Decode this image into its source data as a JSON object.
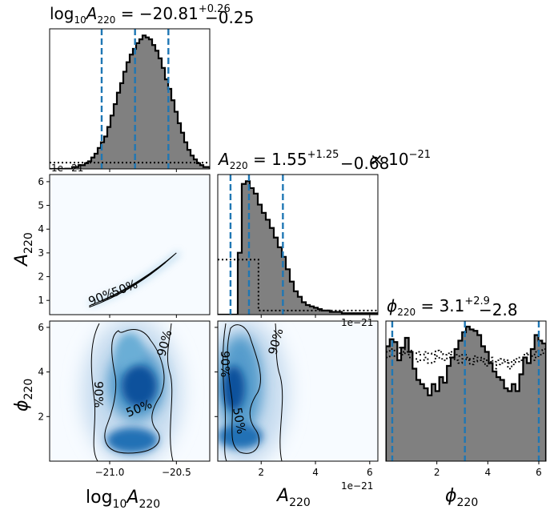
{
  "chart_data": {
    "type": "corner",
    "panels": [
      {
        "id": "hist-logA",
        "type": "histogram",
        "title": "log10A220 = −20.81 +0.26 −0.25",
        "title_parts": {
          "lhs": "log",
          "lhs_sub": "10",
          "sym": "A",
          "sym_sub": "220",
          "eq": " = −20.81",
          "sup": "+0.26",
          "sub": "−0.25"
        },
        "x_range": [
          -21.45,
          -20.25
        ],
        "bins_x": [
          -21.45,
          -20.25
        ],
        "counts": [
          0,
          0,
          0,
          0,
          0,
          0,
          0,
          1,
          1,
          2,
          2,
          3,
          4,
          6,
          8,
          11,
          14,
          17,
          22,
          28,
          34,
          40,
          45,
          51,
          56,
          60,
          63,
          66,
          68,
          70,
          69,
          68,
          65,
          62,
          58,
          53,
          47,
          42,
          36,
          30,
          24,
          19,
          14,
          10,
          7,
          5,
          3,
          2,
          1,
          1
        ],
        "vlines": [
          -21.06,
          -20.81,
          -20.56
        ],
        "prior_level": 0.045,
        "offset_text": "1e−21"
      },
      {
        "id": "hist-A",
        "type": "histogram",
        "title": "A220 = 1.55 +1.25 −0.68 × 10^−21",
        "title_parts": {
          "sym": "A",
          "sym_sub": "220",
          "eq": " = 1.55",
          "sup": "+1.25",
          "sub": "−0.68",
          "tail": " × 10",
          "exp": "−21"
        },
        "x_range": [
          0.4,
          6.3
        ],
        "counts": [
          0,
          0,
          0,
          0,
          0,
          45,
          95,
          97,
          92,
          88,
          80,
          74,
          69,
          63,
          56,
          49,
          42,
          33,
          24,
          17,
          13,
          9,
          7,
          6,
          5,
          4,
          3,
          3,
          2,
          2,
          2,
          1,
          1,
          1,
          1,
          1,
          1,
          1,
          1,
          1
        ],
        "vlines": [
          0.87,
          1.55,
          2.8
        ],
        "prior": [
          [
            0.4,
            0.4
          ],
          [
            1.9,
            0.4
          ],
          [
            1.9,
            0.03
          ],
          [
            6.3,
            0.03
          ]
        ],
        "offset_text": "1e−21"
      },
      {
        "id": "hist-phi",
        "type": "histogram",
        "title": "ϕ220 = 3.1 +2.9 −2.8",
        "title_parts": {
          "sym": "ϕ",
          "sym_sub": "220",
          "eq": " = 3.1",
          "sup": "+2.9",
          "sub": "−2.8"
        },
        "x_range": [
          0.0,
          6.283
        ],
        "counts": [
          0.82,
          0.87,
          0.85,
          0.72,
          0.81,
          0.88,
          0.78,
          0.66,
          0.58,
          0.55,
          0.52,
          0.47,
          0.55,
          0.5,
          0.6,
          0.56,
          0.68,
          0.74,
          0.8,
          0.86,
          0.92,
          0.96,
          0.94,
          0.93,
          0.9,
          0.82,
          0.78,
          0.7,
          0.64,
          0.6,
          0.58,
          0.52,
          0.5,
          0.55,
          0.5,
          0.62,
          0.74,
          0.7,
          0.8,
          0.9,
          0.86,
          0.84
        ],
        "vlines": [
          0.25,
          3.1,
          6.0
        ],
        "prior_a": [
          0.74,
          0.76,
          0.75,
          0.77,
          0.76,
          0.78,
          0.74,
          0.73,
          0.71,
          0.72,
          0.74,
          0.7,
          0.71,
          0.75,
          0.73,
          0.72,
          0.74,
          0.76,
          0.72,
          0.7,
          0.73,
          0.72,
          0.69,
          0.71,
          0.72,
          0.71,
          0.68,
          0.71,
          0.66,
          0.69,
          0.7,
          0.71,
          0.66,
          0.69,
          0.71,
          0.72,
          0.74,
          0.76,
          0.72,
          0.74,
          0.76,
          0.77
        ],
        "prior_b": [
          0.78,
          0.8,
          0.79,
          0.81,
          0.78,
          0.8,
          0.79,
          0.77,
          0.78,
          0.76,
          0.78,
          0.77,
          0.76,
          0.79,
          0.78,
          0.76,
          0.77,
          0.78,
          0.76,
          0.75,
          0.76,
          0.74,
          0.73,
          0.75,
          0.74,
          0.73,
          0.72,
          0.74,
          0.71,
          0.72,
          0.73,
          0.72,
          0.7,
          0.72,
          0.73,
          0.74,
          0.76,
          0.77,
          0.75,
          0.78,
          0.79,
          0.8
        ]
      },
      {
        "id": "kde-logA-A",
        "type": "kde2d",
        "x_range": [
          -21.45,
          -20.25
        ],
        "y_range": [
          0.4,
          6.3
        ],
        "contour_labels": [
          "90%",
          "50%"
        ]
      },
      {
        "id": "kde-logA-phi",
        "type": "kde2d",
        "x_range": [
          -21.45,
          -20.25
        ],
        "y_range": [
          0.0,
          6.283
        ],
        "contour_labels": [
          "90%",
          "90%",
          "50%"
        ]
      },
      {
        "id": "kde-A-phi",
        "type": "kde2d",
        "x_range": [
          0.4,
          6.3
        ],
        "y_range": [
          0.0,
          6.283
        ],
        "contour_labels": [
          "90%",
          "90%",
          "50%"
        ]
      }
    ],
    "axes": {
      "logA": {
        "label": "log10A220",
        "ticks": [
          "−21.0",
          "−20.5"
        ],
        "tick_values": [
          -21.0,
          -20.5
        ]
      },
      "A": {
        "label": "A220",
        "ticks": [
          "2",
          "4",
          "6"
        ],
        "tick_values": [
          2,
          4,
          6
        ],
        "offset_text": "1e−21"
      },
      "A_y": {
        "label": "A220",
        "ticks": [
          "1",
          "2",
          "3",
          "4",
          "5",
          "6"
        ],
        "tick_values": [
          1,
          2,
          3,
          4,
          5,
          6
        ]
      },
      "phi": {
        "label": "ϕ220",
        "ticks": [
          "2",
          "4",
          "6"
        ],
        "tick_values": [
          2,
          4,
          6
        ]
      },
      "phi_y": {
        "label": "ϕ220",
        "ticks": [
          "2",
          "4",
          "6"
        ],
        "tick_values": [
          2,
          4,
          6
        ]
      }
    },
    "colors": {
      "hist_fill": "#808080",
      "vline": "#1f77b4",
      "density": "#08519c"
    }
  },
  "text": {
    "t1_log": "log",
    "t1_10": "10",
    "t1_A": "A",
    "t1_220": "220",
    "t1_eq": " = −20.81",
    "t1_sup": "+0.26",
    "t1_sub": "−0.25",
    "t2_A": "A",
    "t2_220": "220",
    "t2_eq": " = 1.55",
    "t2_sup": "+1.25",
    "t2_sub": "−0.68",
    "t2_tail": " × 10",
    "t2_exp": "−21",
    "t3_phi": "ϕ",
    "t3_220": "220",
    "t3_eq": " = 3.1",
    "t3_sup": "+2.9",
    "t3_sub": "−2.8",
    "offset1": "1e−21",
    "offset2": "1e−21",
    "offset3": "1e−21",
    "xl1_log": "log",
    "xl1_10": "10",
    "xl1_A": "A",
    "xl1_220": "220",
    "xl2_A": "A",
    "xl2_220": "220",
    "xl3_phi": "ϕ",
    "xl3_220": "220",
    "yl1_A": "A",
    "yl1_220": "220",
    "yl2_phi": "ϕ",
    "yl2_220": "220",
    "c1_90": "90%",
    "c1_50": "50%",
    "c2_90a": "90%",
    "c2_90b": "90%",
    "c2_50": "50%",
    "c3_90a": "90%",
    "c3_90b": "90%",
    "c3_50": "50%"
  }
}
